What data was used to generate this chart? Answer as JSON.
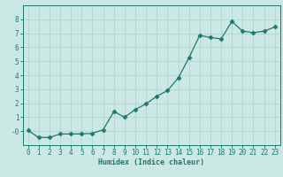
{
  "title": "",
  "xlabel": "Humidex (Indice chaleur)",
  "x": [
    0,
    1,
    2,
    3,
    4,
    5,
    6,
    7,
    8,
    9,
    10,
    11,
    12,
    13,
    14,
    15,
    16,
    17,
    18,
    19,
    20,
    21,
    22,
    23
  ],
  "y": [
    0.05,
    -0.45,
    -0.45,
    -0.2,
    -0.2,
    -0.2,
    -0.15,
    0.1,
    1.4,
    1.0,
    1.55,
    1.95,
    2.5,
    2.9,
    3.8,
    5.25,
    6.85,
    6.7,
    6.6,
    7.85,
    7.15,
    7.05,
    7.15,
    7.45
  ],
  "line_color": "#1a7a6e",
  "marker": "D",
  "marker_size": 2.5,
  "background_color": "#cce8e4",
  "grid_color": "#b0d4d0",
  "axis_color": "#1a7a6e",
  "tick_label_color": "#1a7a6e",
  "xlabel_color": "#1a7a6e",
  "ylim": [
    -1,
    9
  ],
  "xlim": [
    -0.5,
    23.5
  ],
  "yticks": [
    0,
    1,
    2,
    3,
    4,
    5,
    6,
    7,
    8
  ],
  "xticks": [
    0,
    1,
    2,
    3,
    4,
    5,
    6,
    7,
    8,
    9,
    10,
    11,
    12,
    13,
    14,
    15,
    16,
    17,
    18,
    19,
    20,
    21,
    22,
    23
  ],
  "figsize": [
    3.2,
    2.0
  ],
  "dpi": 100
}
